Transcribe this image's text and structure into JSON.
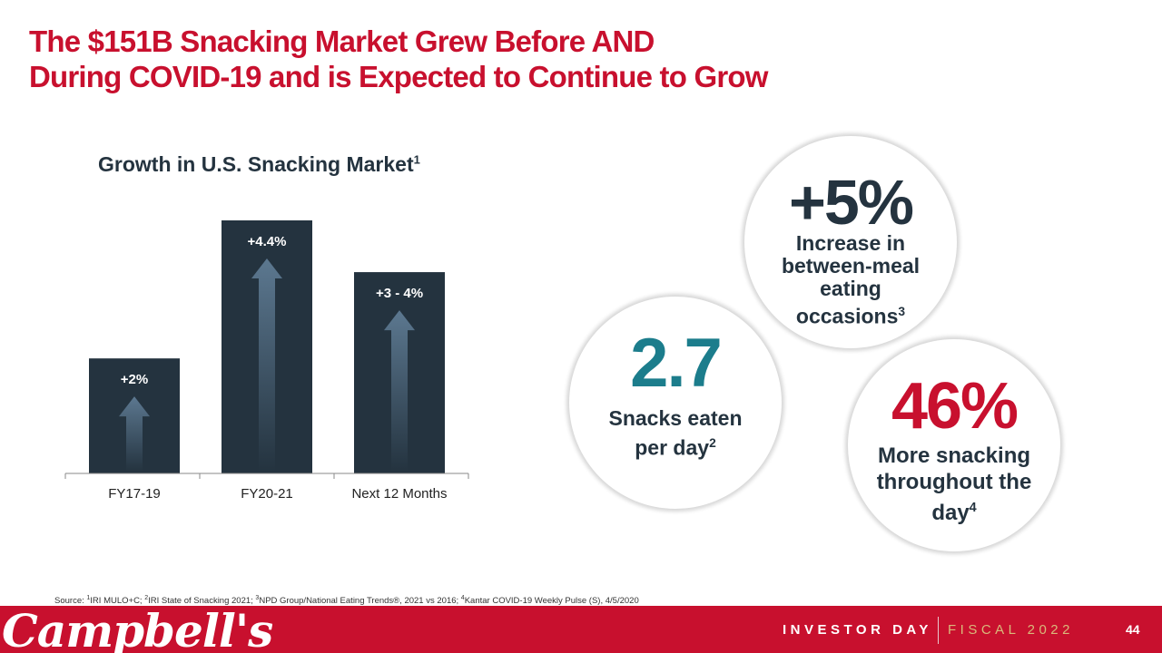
{
  "title": {
    "line1": "The $151B Snacking Market Grew Before AND",
    "line2": "During COVID-19 and is Expected to Continue to Grow"
  },
  "chart_data": {
    "type": "bar",
    "title": "Growth in U.S. Snacking Market",
    "title_footnote": "1",
    "categories": [
      "FY17-19",
      "FY20-21",
      "Next 12 Months"
    ],
    "values": [
      2.0,
      4.4,
      3.5
    ],
    "labels": [
      "+2%",
      "+4.4%",
      "+3 - 4%"
    ],
    "ylim": [
      0,
      4.4
    ],
    "xlabel": "",
    "ylabel": "",
    "grid": false,
    "colors": {
      "bar": "#24333f",
      "arrow_top": "#5c7890",
      "arrow_bottom": "#24333f",
      "axis": "#8a8a8a",
      "label": "#ffffff",
      "tick": "#222222"
    }
  },
  "stats": [
    {
      "value": "+5%",
      "text": "Increase in between-meal eating occasions",
      "footnote": "3",
      "color": "#24333f"
    },
    {
      "value": "2.7",
      "text": "Snacks eaten per day",
      "footnote": "2",
      "color": "#1c7d8c"
    },
    {
      "value": "46%",
      "text": "More snacking throughout the day",
      "footnote": "4",
      "color": "#c8102e"
    }
  ],
  "source": {
    "prefix": "Source: ",
    "refs": [
      {
        "num": "1",
        "text": "IRI MULO+C; "
      },
      {
        "num": "2",
        "text": "IRI State of Snacking 2021; "
      },
      {
        "num": "3",
        "text": "NPD Group/National Eating Trends®, 2021 vs 2016;  "
      },
      {
        "num": "4",
        "text": "Kantar COVID-19 Weekly Pulse (S), 4/5/2020"
      }
    ]
  },
  "footer": {
    "logo": "Campbell's",
    "event": "INVESTOR DAY",
    "fiscal": "FISCAL 2022",
    "page": "44"
  },
  "colors": {
    "brand_red": "#c8102e",
    "navy": "#24333f",
    "teal": "#1c7d8c",
    "gold": "#d9b97a"
  }
}
